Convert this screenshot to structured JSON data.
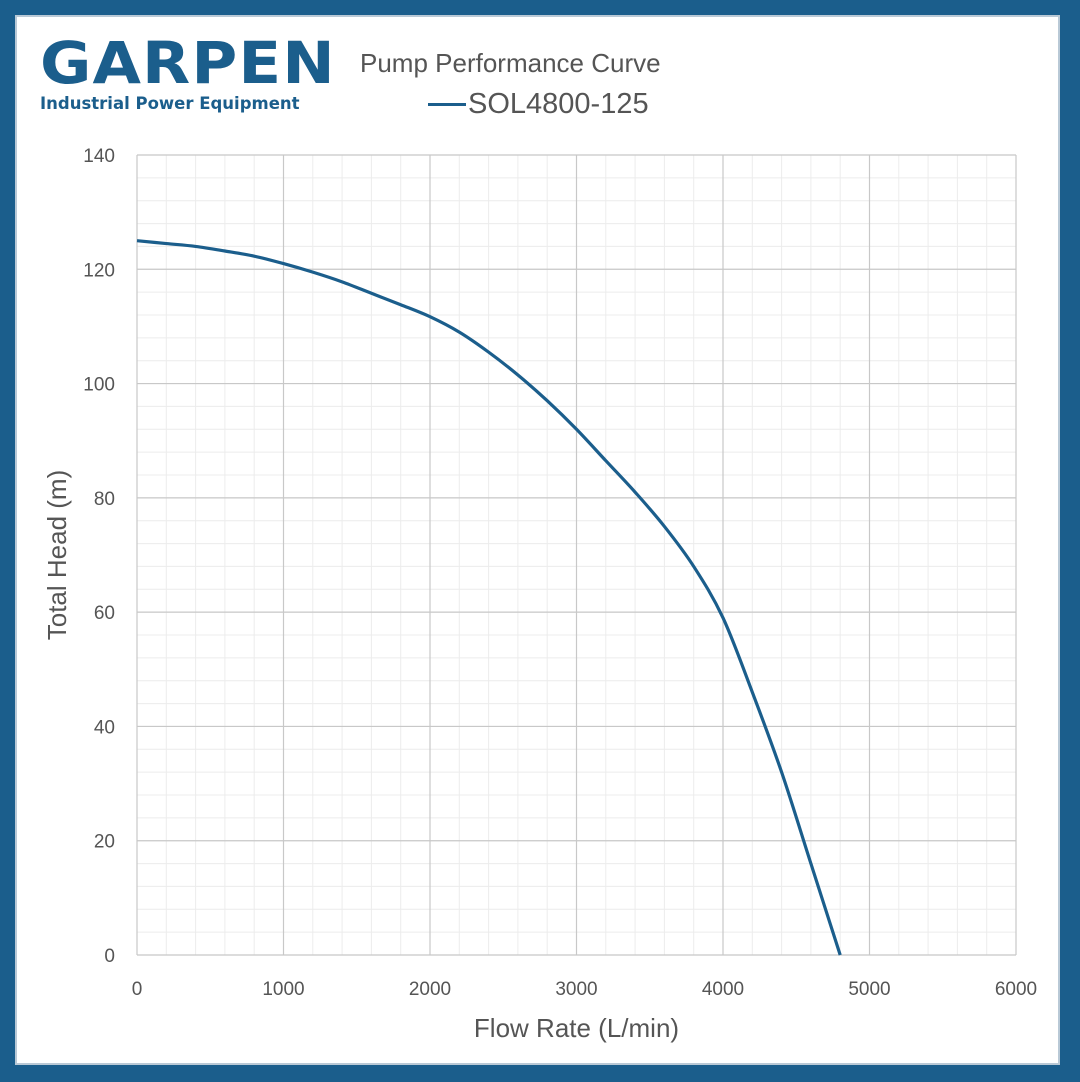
{
  "brand": {
    "name": "GARPEN",
    "tagline": "Industrial Power Equipment",
    "color": "#1b5e8c"
  },
  "chart_data": {
    "type": "line",
    "title": "Pump Performance Curve",
    "xlabel": "Flow Rate (L/min)",
    "ylabel": "Total Head (m)",
    "xlim": [
      0,
      6000
    ],
    "ylim": [
      0,
      140
    ],
    "xticks": [
      0,
      1000,
      2000,
      3000,
      4000,
      5000,
      6000
    ],
    "yticks": [
      0,
      20,
      40,
      60,
      80,
      100,
      120,
      140
    ],
    "grid": {
      "major": true,
      "minor": true,
      "minor_x_step": 200,
      "minor_y_step": 4
    },
    "legend": "top",
    "series": [
      {
        "name": "SOL4800-125",
        "color": "#1b5e8c",
        "x": [
          0,
          200,
          400,
          600,
          800,
          1000,
          1200,
          1400,
          1600,
          1800,
          2000,
          2200,
          2400,
          2600,
          2800,
          3000,
          3200,
          3400,
          3600,
          3800,
          4000,
          4200,
          4400,
          4600,
          4800
        ],
        "y": [
          125,
          124.5,
          124,
          123.2,
          122.3,
          121,
          119.5,
          117.8,
          115.8,
          113.8,
          111.7,
          109,
          105.5,
          101.5,
          97,
          92,
          86.5,
          81,
          75,
          68,
          59,
          46,
          32,
          16,
          0
        ]
      }
    ]
  }
}
